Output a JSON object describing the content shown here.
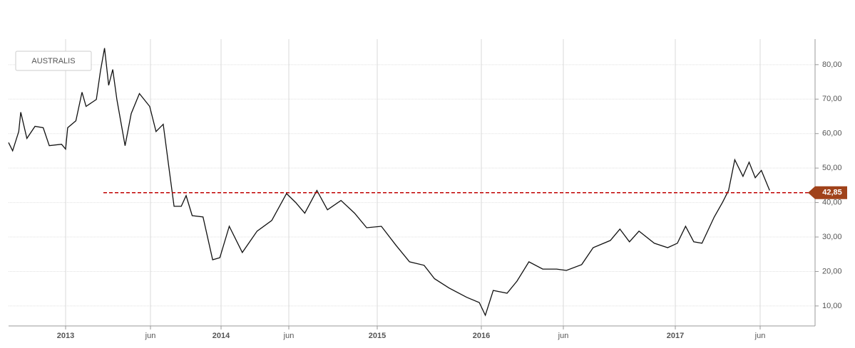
{
  "chart_data": {
    "type": "line",
    "series": [
      {
        "name": "AUSTRALIS",
        "color": "#111111",
        "x": [
          2012.72,
          2012.74,
          2012.77,
          2012.78,
          2012.81,
          2012.85,
          2012.89,
          2012.92,
          2012.98,
          2013.0,
          2013.01,
          2013.05,
          2013.08,
          2013.1,
          2013.15,
          2013.17,
          2013.19,
          2013.21,
          2013.23,
          2013.25,
          2013.29,
          2013.32,
          2013.36,
          2013.41,
          2013.46,
          2013.52,
          2013.57,
          2013.61,
          2013.67,
          2013.71,
          2013.76,
          2013.85,
          2013.93,
          2013.99,
          2014.05,
          2014.13,
          2014.22,
          2014.31,
          2014.4,
          2014.46,
          2014.52,
          2014.6,
          2014.67,
          2014.76,
          2014.85,
          2014.93,
          2015.04,
          2015.18,
          2015.31,
          2015.45,
          2015.55,
          2015.69,
          2015.86,
          2015.98,
          2016.02,
          2016.06,
          2016.13,
          2016.18,
          2016.24,
          2016.31,
          2016.38,
          2016.43,
          2016.51,
          2016.57,
          2016.66,
          2016.71,
          2016.76,
          2016.81,
          2016.89,
          2016.96,
          2017.01,
          2017.05,
          2017.09,
          2017.13,
          2017.19,
          2017.23,
          2017.26,
          2017.29,
          2017.33,
          2017.36,
          2017.39,
          2017.42,
          2017.46
        ],
        "values": [
          57.4,
          55.0,
          60.6,
          66.2,
          58.6,
          62.1,
          61.7,
          56.5,
          56.9,
          55.5,
          61.7,
          63.7,
          72.0,
          67.9,
          69.9,
          78.2,
          84.8,
          74.0,
          78.6,
          69.9,
          56.5,
          65.8,
          71.6,
          67.9,
          60.6,
          62.7,
          49.3,
          38.9,
          38.9,
          42.0,
          36.2,
          35.8,
          23.4,
          24.0,
          33.1,
          25.5,
          31.7,
          34.8,
          42.6,
          40.0,
          36.9,
          43.5,
          37.9,
          40.6,
          36.9,
          32.7,
          33.1,
          27.6,
          22.8,
          21.8,
          17.9,
          15.2,
          12.5,
          11.0,
          7.3,
          14.5,
          13.7,
          17.2,
          22.8,
          20.7,
          20.7,
          20.3,
          22.0,
          26.9,
          29.0,
          32.3,
          28.6,
          31.7,
          28.2,
          26.9,
          28.2,
          33.1,
          28.6,
          28.2,
          35.8,
          40.0,
          43.5,
          52.4,
          47.6,
          51.7,
          47.2,
          49.3,
          43.5
        ]
      }
    ],
    "reference_line": {
      "value": 42.85,
      "label": "42,85",
      "color": "#c00000"
    },
    "xlim": [
      2012.72,
      2017.68
    ],
    "xticks": [
      2013,
      {
        "value": 2013.414,
        "label": "jun"
      },
      2014,
      {
        "value": 2014.414,
        "label": "jun"
      },
      2015,
      2016,
      {
        "value": 2016.414,
        "label": "jun"
      },
      2017,
      {
        "value": 2017.414,
        "label": "jun"
      }
    ],
    "ylim": [
      4.2,
      87.4
    ],
    "yticks": [
      {
        "value": 10,
        "label": "10,00"
      },
      {
        "value": 20,
        "label": "20,00"
      },
      {
        "value": 30,
        "label": "30,00"
      },
      {
        "value": 40,
        "label": "40,00"
      },
      {
        "value": 50,
        "label": "50,00"
      },
      {
        "value": 60,
        "label": "60,00"
      },
      {
        "value": 70,
        "label": "70,00"
      },
      {
        "value": 80,
        "label": "80,00"
      }
    ],
    "grid": true
  }
}
